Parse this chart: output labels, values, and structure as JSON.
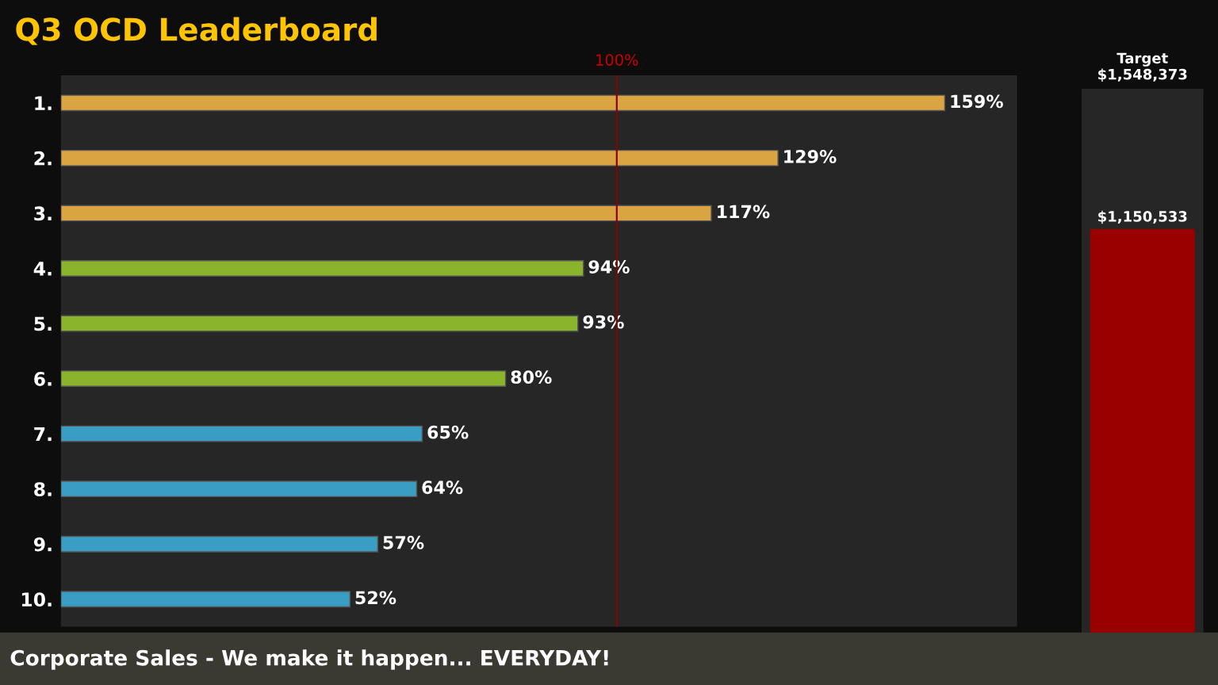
{
  "chart_data": [
    {
      "type": "bar",
      "orientation": "horizontal",
      "title": "Q3 OCD Leaderboard",
      "categories": [
        "1.",
        "2.",
        "3.",
        "4.",
        "5.",
        "6.",
        "7.",
        "8.",
        "9.",
        "10."
      ],
      "values": [
        159,
        129,
        117,
        94,
        93,
        80,
        65,
        64,
        57,
        52
      ],
      "colors": [
        "#d9a441",
        "#d9a441",
        "#d9a441",
        "#8ab42c",
        "#8ab42c",
        "#8ab42c",
        "#3a9ec4",
        "#3a9ec4",
        "#3a9ec4",
        "#3a9ec4"
      ],
      "value_labels": [
        "159%",
        "129%",
        "117%",
        "94%",
        "93%",
        "80%",
        "65%",
        "64%",
        "57%",
        "52%"
      ],
      "xlim": [
        0,
        172
      ],
      "ref_lines": [
        {
          "axis": "x",
          "value": 100,
          "label": "100%",
          "color": "#8b0000"
        }
      ],
      "tick_labels": "y",
      "annotations": [
        "Corporate Sales - We make it happen... EVERYDAY!"
      ]
    },
    {
      "type": "bar",
      "categories": [
        null
      ],
      "values": [
        1150533
      ],
      "colors": [
        "#990000"
      ],
      "value_labels": [
        "$1,150,533"
      ],
      "ylim": [
        0,
        1548373
      ],
      "ref_lines": [
        {
          "axis": "y",
          "value": 1548373,
          "label": "Target\n$1,548,373",
          "color": "#2a2a2a"
        }
      ],
      "tick_labels": false
    }
  ]
}
